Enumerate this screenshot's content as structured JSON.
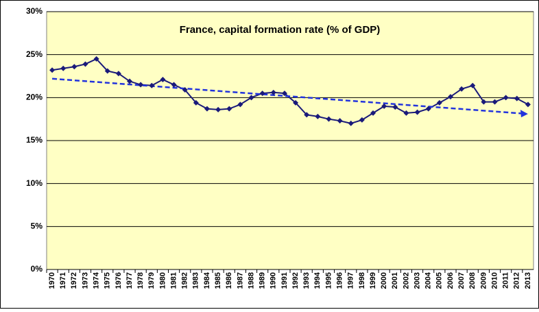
{
  "chart_data": {
    "type": "line",
    "title": "France, capital formation rate (% of GDP)",
    "categories": [
      "1970",
      "1971",
      "1972",
      "1973",
      "1974",
      "1975",
      "1976",
      "1977",
      "1978",
      "1979",
      "1980",
      "1981",
      "1982",
      "1983",
      "1984",
      "1985",
      "1986",
      "1987",
      "1988",
      "1989",
      "1990",
      "1991",
      "1992",
      "1993",
      "1994",
      "1995",
      "1996",
      "1997",
      "1998",
      "1999",
      "2000",
      "2001",
      "2002",
      "2003",
      "2004",
      "2005",
      "2006",
      "2007",
      "2008",
      "2009",
      "2010",
      "2011",
      "2012",
      "2013"
    ],
    "values": [
      23.2,
      23.4,
      23.6,
      23.9,
      24.5,
      23.1,
      22.8,
      21.9,
      21.5,
      21.4,
      22.1,
      21.5,
      20.9,
      19.4,
      18.7,
      18.6,
      18.7,
      19.2,
      20.0,
      20.5,
      20.6,
      20.5,
      19.4,
      18.0,
      17.8,
      17.5,
      17.3,
      17.0,
      17.4,
      18.2,
      19.0,
      18.9,
      18.2,
      18.3,
      18.7,
      19.4,
      20.1,
      21.0,
      21.4,
      19.5,
      19.5,
      20.0,
      19.9,
      19.2
    ],
    "color": "#1a1a7a",
    "trend_values": [
      22.2,
      18.1
    ],
    "trend_color": "#2233dd",
    "ylim": [
      0,
      30
    ],
    "yticks": [
      {
        "value": 0,
        "label": "0%"
      },
      {
        "value": 5,
        "label": "5%"
      },
      {
        "value": 10,
        "label": "10%"
      },
      {
        "value": 15,
        "label": "15%"
      },
      {
        "value": 20,
        "label": "20%"
      },
      {
        "value": 25,
        "label": "25%"
      },
      {
        "value": 30,
        "label": "30%"
      }
    ],
    "grid": true
  }
}
